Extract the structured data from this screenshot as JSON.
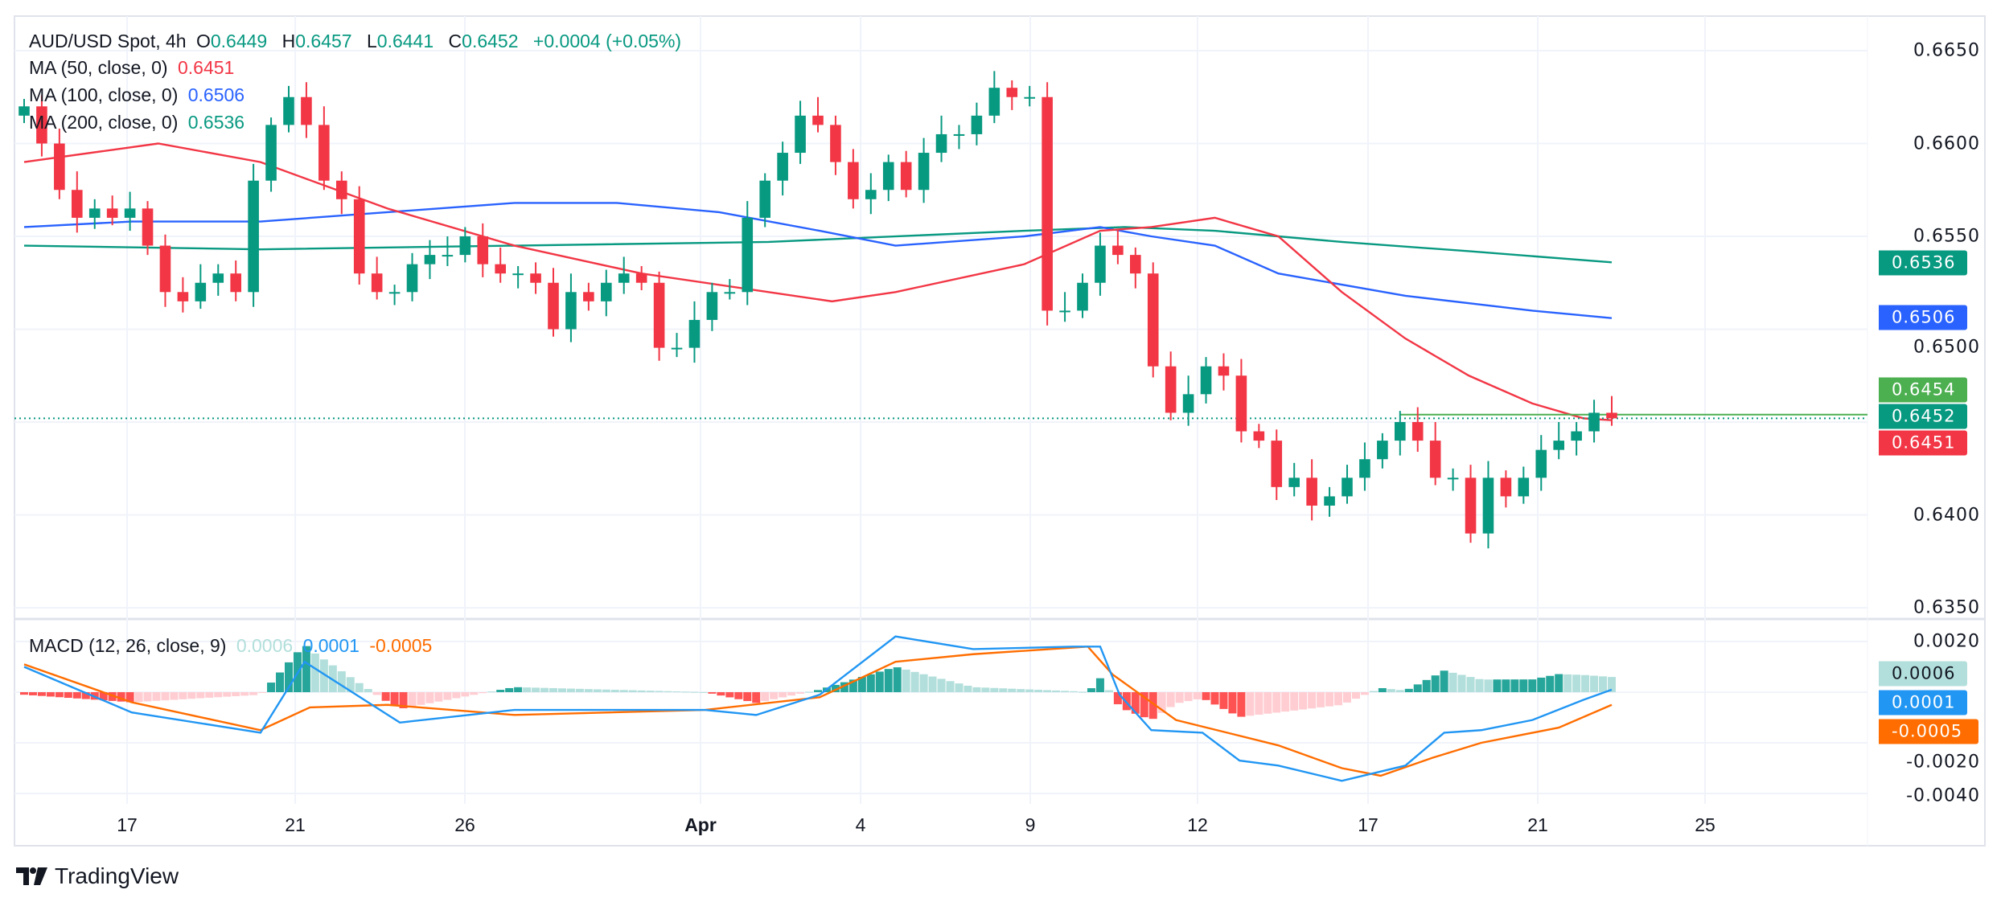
{
  "legend": {
    "symbol": "AUD/USD Spot, 4h",
    "open_label": "O",
    "open": "0.6449",
    "high_label": "H",
    "high": "0.6457",
    "low_label": "L",
    "low": "0.6441",
    "close_label": "C",
    "close": "0.6452",
    "change": "+0.0004 (+0.05%)",
    "ma50_label": "MA (50, close, 0)",
    "ma50_value": "0.6451",
    "ma100_label": "MA (100, close, 0)",
    "ma100_value": "0.6506",
    "ma200_label": "MA (200, close, 0)",
    "ma200_value": "0.6536",
    "macd_label": "MACD (12, 26, close, 9)",
    "macd_hist": "0.0006",
    "macd_line": "0.0001",
    "macd_signal": "-0.0005"
  },
  "price_axis": [
    "0.6650",
    "0.6600",
    "0.6550",
    "0.6500",
    "0.6400",
    "0.6350"
  ],
  "macd_axis": [
    "0.0020",
    "-0.0020",
    "-0.0040"
  ],
  "tags": {
    "ma200": "0.6536",
    "ma100": "0.6506",
    "high": "0.6454",
    "last": "0.6452",
    "ma50": "0.6451",
    "hist": "0.0006",
    "macd": "0.0001",
    "signal": "-0.0005"
  },
  "x_axis": [
    "17",
    "21",
    "26",
    "Apr",
    "4",
    "9",
    "12",
    "17",
    "21",
    "25"
  ],
  "brand": "TradingView",
  "colors": {
    "up": "#089981",
    "down": "#f23645",
    "ma50": "#f23645",
    "ma100": "#2962ff",
    "ma200": "#089981",
    "macd": "#2196f3",
    "signal": "#ff6d00",
    "hist_up": "#26a69a",
    "hist_up_weak": "#b2dfdb",
    "hist_down": "#ff5252",
    "hist_down_weak": "#ffcdd2"
  },
  "chart_data": {
    "type": "candlestick",
    "symbol": "AUD/USD Spot",
    "interval": "4h",
    "ylim": [
      0.634,
      0.666
    ],
    "closes": [
      0.662,
      0.66,
      0.6575,
      0.656,
      0.6565,
      0.656,
      0.6565,
      0.6545,
      0.652,
      0.6515,
      0.6525,
      0.653,
      0.652,
      0.658,
      0.661,
      0.6625,
      0.661,
      0.658,
      0.657,
      0.653,
      0.652,
      0.652,
      0.6535,
      0.654,
      0.654,
      0.655,
      0.6535,
      0.653,
      0.653,
      0.6525,
      0.65,
      0.652,
      0.6515,
      0.6525,
      0.653,
      0.6525,
      0.649,
      0.649,
      0.6505,
      0.652,
      0.652,
      0.656,
      0.658,
      0.6595,
      0.6615,
      0.661,
      0.659,
      0.657,
      0.6575,
      0.659,
      0.6575,
      0.6595,
      0.6605,
      0.6605,
      0.6615,
      0.663,
      0.6625,
      0.6625,
      0.651,
      0.651,
      0.6525,
      0.6545,
      0.654,
      0.653,
      0.648,
      0.6455,
      0.6465,
      0.648,
      0.6475,
      0.6445,
      0.644,
      0.6415,
      0.642,
      0.6405,
      0.641,
      0.642,
      0.643,
      0.644,
      0.645,
      0.644,
      0.642,
      0.642,
      0.639,
      0.642,
      0.641,
      0.642,
      0.6435,
      0.644,
      0.6445,
      0.6455,
      0.6452
    ],
    "ma50": [
      [
        0,
        0.659
      ],
      [
        7.6,
        0.66
      ],
      [
        13.4,
        0.659
      ],
      [
        20.6,
        0.6565
      ],
      [
        27.8,
        0.6545
      ],
      [
        35,
        0.653
      ],
      [
        42.2,
        0.652
      ],
      [
        45.8,
        0.6515
      ],
      [
        49.4,
        0.652
      ],
      [
        56.7,
        0.6535
      ],
      [
        61,
        0.6553
      ],
      [
        63.9,
        0.6555
      ],
      [
        67.5,
        0.656
      ],
      [
        71.1,
        0.655
      ],
      [
        74.7,
        0.652
      ],
      [
        78.3,
        0.6495
      ],
      [
        81.9,
        0.6475
      ],
      [
        85.5,
        0.646
      ],
      [
        88.4,
        0.6452
      ],
      [
        90,
        0.6451
      ]
    ],
    "ma100": [
      [
        0,
        0.6555
      ],
      [
        6.1,
        0.6558
      ],
      [
        13.4,
        0.6558
      ],
      [
        20.6,
        0.6563
      ],
      [
        27.8,
        0.6568
      ],
      [
        33.6,
        0.6568
      ],
      [
        39.4,
        0.6563
      ],
      [
        45.1,
        0.6553
      ],
      [
        49.4,
        0.6545
      ],
      [
        56.7,
        0.655
      ],
      [
        61,
        0.6555
      ],
      [
        63.9,
        0.655
      ],
      [
        67.5,
        0.6545
      ],
      [
        71.1,
        0.653
      ],
      [
        78.3,
        0.6518
      ],
      [
        85.5,
        0.651
      ],
      [
        90,
        0.6506
      ]
    ],
    "ma200": [
      [
        0,
        0.6545
      ],
      [
        13.4,
        0.6543
      ],
      [
        27.8,
        0.6545
      ],
      [
        42.2,
        0.6547
      ],
      [
        56.7,
        0.6553
      ],
      [
        62.4,
        0.6555
      ],
      [
        67.5,
        0.6553
      ],
      [
        74.7,
        0.6547
      ],
      [
        81.9,
        0.6542
      ],
      [
        90,
        0.6536
      ]
    ],
    "macd_ylim": [
      -0.0046,
      0.0024
    ],
    "macd": [
      [
        0,
        0.001
      ],
      [
        6.1,
        -0.0008
      ],
      [
        13.4,
        -0.0016
      ],
      [
        15.9,
        0.0012
      ],
      [
        21.3,
        -0.0012
      ],
      [
        27.8,
        -0.0007
      ],
      [
        38.6,
        -0.0007
      ],
      [
        41.5,
        -0.0009
      ],
      [
        45.1,
        -0.0001
      ],
      [
        49.4,
        0.0022
      ],
      [
        53.8,
        0.0017
      ],
      [
        59.5,
        0.0018
      ],
      [
        61,
        0.0018
      ],
      [
        62.1,
        -0.0001
      ],
      [
        63.9,
        -0.0015
      ],
      [
        66.8,
        -0.0016
      ],
      [
        68.9,
        -0.0027
      ],
      [
        71.1,
        -0.0029
      ],
      [
        74.7,
        -0.0035
      ],
      [
        78.3,
        -0.0029
      ],
      [
        80.5,
        -0.0016
      ],
      [
        82.6,
        -0.0015
      ],
      [
        85.5,
        -0.0011
      ],
      [
        88.4,
        -0.0003
      ],
      [
        90,
        0.0001
      ]
    ],
    "signal": [
      [
        0,
        0.0011
      ],
      [
        6.1,
        -0.0004
      ],
      [
        13.4,
        -0.0015
      ],
      [
        16.2,
        -0.0006
      ],
      [
        20.6,
        -0.0005
      ],
      [
        27.8,
        -0.0009
      ],
      [
        38.6,
        -0.0007
      ],
      [
        45.1,
        -0.0002
      ],
      [
        49.4,
        0.0012
      ],
      [
        53.8,
        0.0015
      ],
      [
        60.3,
        0.0018
      ],
      [
        61.7,
        0.0007
      ],
      [
        65.3,
        -0.0011
      ],
      [
        71.1,
        -0.0021
      ],
      [
        74.7,
        -0.003
      ],
      [
        76.9,
        -0.0033
      ],
      [
        79.8,
        -0.0026
      ],
      [
        82.6,
        -0.002
      ],
      [
        87,
        -0.0014
      ],
      [
        90,
        -0.0005
      ]
    ]
  }
}
